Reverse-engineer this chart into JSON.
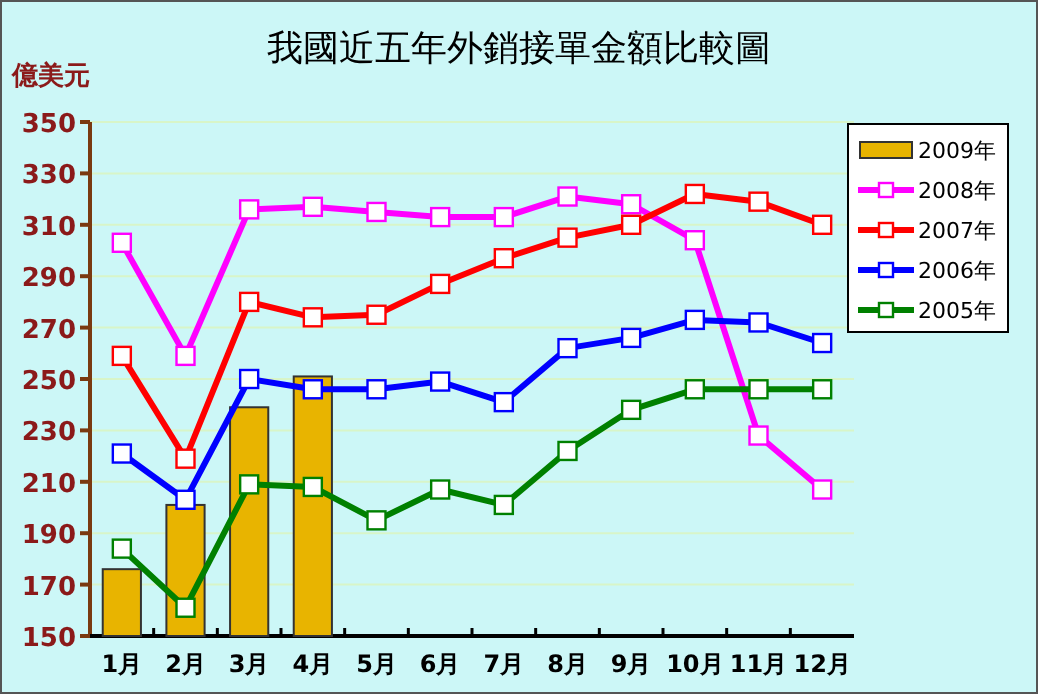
{
  "chart_data": {
    "type": "line",
    "title": "我國近五年外銷接單金額比較圖",
    "ylabel": "億美元",
    "categories": [
      "1月",
      "2月",
      "3月",
      "4月",
      "5月",
      "6月",
      "7月",
      "8月",
      "9月",
      "10月",
      "11月",
      "12月"
    ],
    "series": [
      {
        "name": "2009年",
        "type": "bar",
        "color": "#e8b400",
        "values": [
          176,
          201,
          239,
          251,
          null,
          null,
          null,
          null,
          null,
          null,
          null,
          null
        ]
      },
      {
        "name": "2008年",
        "color": "#ff00ff",
        "values": [
          303,
          259,
          316,
          317,
          315,
          313,
          313,
          321,
          318,
          304,
          228,
          207
        ]
      },
      {
        "name": "2007年",
        "color": "#ff0000",
        "values": [
          259,
          219,
          280,
          274,
          275,
          287,
          297,
          305,
          310,
          322,
          319,
          310
        ]
      },
      {
        "name": "2006年",
        "color": "#0000ff",
        "values": [
          221,
          203,
          250,
          246,
          246,
          249,
          241,
          262,
          266,
          273,
          272,
          264
        ]
      },
      {
        "name": "2005年",
        "color": "#008000",
        "values": [
          184,
          161,
          209,
          208,
          195,
          207,
          201,
          222,
          238,
          246,
          246,
          246
        ]
      }
    ],
    "ylim": [
      150,
      350
    ],
    "yticks": [
      150,
      170,
      190,
      210,
      230,
      250,
      270,
      290,
      310,
      330,
      350
    ],
    "grid": "y",
    "legend": "right",
    "marker": "square",
    "line_style": "solid"
  }
}
